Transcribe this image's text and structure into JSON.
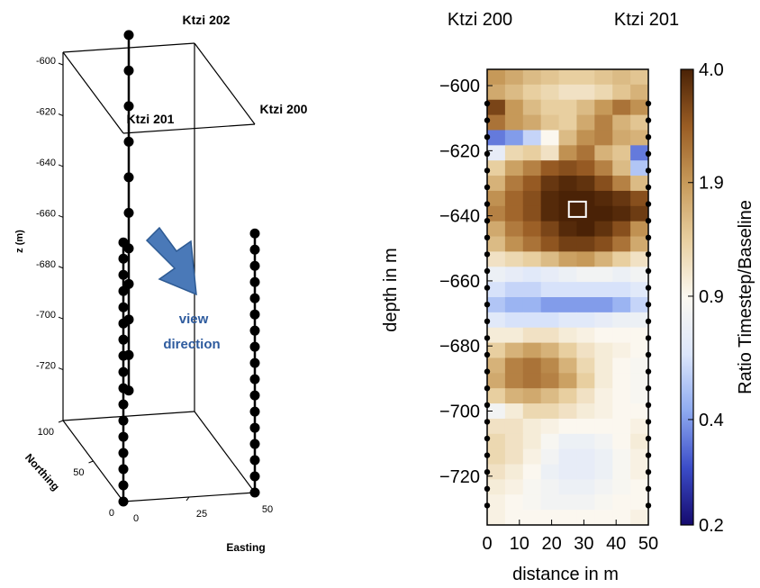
{
  "chart_data": [
    {
      "type": "scatter",
      "title": "",
      "xlabel": "Easting",
      "ylabel": "Northing",
      "zlabel": "z (m)",
      "x_ticks": [
        "0",
        "25",
        "50"
      ],
      "y_ticks": [
        "0",
        "50",
        "100"
      ],
      "z_ticks": [
        "-600",
        "-620",
        "-640",
        "-660",
        "-680",
        "-700",
        "-720"
      ],
      "zlim": [
        -740,
        -595
      ],
      "wells": [
        {
          "name": "Ktzi 202",
          "easting": 25,
          "northing": 100,
          "z": [
            -603,
            -612,
            -620,
            -629,
            -638,
            -648,
            -657,
            -667,
            -677,
            -687,
            -697
          ]
        },
        {
          "name": "Ktzi 201",
          "easting": 0,
          "northing": 0,
          "z": [
            -643,
            -652,
            -660,
            -669,
            -677,
            -686,
            -695,
            -704,
            -712,
            -721,
            -730,
            -738,
            -747,
            -756,
            -764,
            -773,
            -781
          ]
        },
        {
          "name": "Ktzi 200",
          "easting": 50,
          "northing": 0,
          "z": [
            -645,
            -654,
            -663,
            -672,
            -681,
            -690,
            -698,
            -707,
            -716,
            -724,
            -733,
            -740,
            -750,
            -761,
            -769,
            -777,
            -784
          ]
        }
      ],
      "annotation": {
        "line1": "view",
        "line2": "direction",
        "color": "#2e5b9e"
      }
    },
    {
      "type": "heatmap",
      "title": "",
      "top_labels": [
        "Ktzi 200",
        "Ktzi 201"
      ],
      "xlabel": "distance  in m",
      "ylabel": "depth  in m",
      "x_ticks": [
        "0",
        "10",
        "20",
        "30",
        "40",
        "50"
      ],
      "xlim": [
        0,
        50
      ],
      "y_ticks": [
        "-600",
        "-620",
        "-640",
        "-660",
        "-680",
        "-700",
        "-720"
      ],
      "ylim": [
        -735,
        -595
      ],
      "colorbar_label": "Ratio Timestep/Baseline",
      "colorbar_ticks": [
        "4.0",
        "1.9",
        "0.9",
        "0.4",
        "0.2"
      ],
      "colorscale": [
        "#150a6e",
        "#3b4cc8",
        "#8eaaf0",
        "#dce6fb",
        "#fbf8f0",
        "#e8cfa0",
        "#c79a5a",
        "#9a5d24",
        "#4a2206"
      ],
      "grid": [
        [
          1.9,
          1.7,
          1.5,
          1.4,
          1.3,
          1.3,
          1.4,
          1.5,
          1.4
        ],
        [
          1.7,
          1.5,
          1.3,
          1.2,
          1.1,
          1.1,
          1.2,
          1.4,
          1.6
        ],
        [
          3.2,
          1.9,
          1.5,
          1.3,
          1.3,
          1.5,
          1.9,
          2.4,
          2.0
        ],
        [
          2.4,
          1.9,
          1.7,
          1.4,
          1.3,
          1.7,
          2.2,
          1.6,
          1.4
        ],
        [
          0.35,
          0.4,
          0.55,
          0.9,
          1.5,
          2.0,
          2.2,
          1.7,
          1.6
        ],
        [
          0.7,
          1.2,
          1.3,
          1.1,
          2.0,
          2.4,
          1.6,
          1.4,
          0.35
        ],
        [
          1.3,
          1.8,
          2.2,
          2.8,
          3.0,
          2.8,
          2.2,
          1.5,
          0.5
        ],
        [
          1.6,
          2.3,
          2.8,
          3.5,
          3.8,
          3.6,
          3.0,
          2.2,
          1.5
        ],
        [
          2.0,
          2.6,
          3.0,
          3.8,
          4.0,
          4.0,
          3.8,
          3.5,
          3.0
        ],
        [
          2.2,
          2.6,
          3.0,
          3.8,
          4.0,
          4.0,
          4.0,
          3.8,
          3.4
        ],
        [
          1.7,
          2.3,
          2.7,
          3.2,
          3.8,
          4.0,
          3.6,
          3.0,
          2.0
        ],
        [
          1.5,
          2.0,
          2.4,
          2.9,
          3.3,
          3.3,
          3.0,
          2.4,
          1.7
        ],
        [
          1.1,
          1.2,
          1.3,
          1.5,
          1.8,
          1.9,
          1.6,
          1.3,
          1.1
        ],
        [
          0.75,
          0.7,
          0.65,
          0.7,
          0.75,
          0.8,
          0.8,
          0.75,
          0.8
        ],
        [
          0.6,
          0.55,
          0.55,
          0.6,
          0.6,
          0.6,
          0.6,
          0.6,
          0.65
        ],
        [
          0.5,
          0.45,
          0.45,
          0.4,
          0.4,
          0.4,
          0.4,
          0.45,
          0.55
        ],
        [
          0.65,
          0.6,
          0.6,
          0.6,
          0.65,
          0.65,
          0.7,
          0.75,
          0.75
        ],
        [
          1.0,
          1.0,
          1.1,
          1.1,
          1.0,
          0.95,
          0.9,
          0.9,
          0.9
        ],
        [
          1.3,
          1.6,
          1.8,
          1.6,
          1.3,
          1.1,
          1.0,
          0.95,
          0.9
        ],
        [
          1.6,
          2.2,
          2.4,
          2.1,
          1.6,
          1.2,
          1.0,
          0.9,
          0.85
        ],
        [
          1.7,
          2.2,
          2.4,
          2.2,
          1.8,
          1.3,
          1.0,
          0.9,
          0.85
        ],
        [
          1.3,
          1.6,
          1.7,
          1.5,
          1.3,
          1.1,
          0.95,
          0.9,
          0.85
        ],
        [
          0.8,
          1.0,
          1.2,
          1.2,
          1.1,
          1.0,
          0.95,
          0.9,
          0.9
        ],
        [
          1.1,
          1.1,
          1.0,
          0.95,
          0.9,
          0.9,
          0.9,
          0.9,
          0.95
        ],
        [
          1.2,
          1.1,
          1.0,
          0.85,
          0.75,
          0.75,
          0.8,
          0.9,
          1.0
        ],
        [
          1.2,
          1.1,
          0.95,
          0.8,
          0.7,
          0.7,
          0.75,
          0.85,
          0.95
        ],
        [
          1.1,
          1.0,
          0.9,
          0.75,
          0.7,
          0.7,
          0.75,
          0.85,
          0.95
        ],
        [
          1.0,
          0.95,
          0.85,
          0.8,
          0.75,
          0.75,
          0.8,
          0.85,
          0.9
        ],
        [
          0.95,
          0.9,
          0.85,
          0.8,
          0.8,
          0.8,
          0.85,
          0.9,
          0.9
        ],
        [
          0.95,
          0.9,
          0.9,
          0.9,
          0.9,
          0.9,
          0.9,
          0.9,
          0.95
        ]
      ],
      "highlight": {
        "x": 28,
        "depth": -638
      }
    }
  ]
}
